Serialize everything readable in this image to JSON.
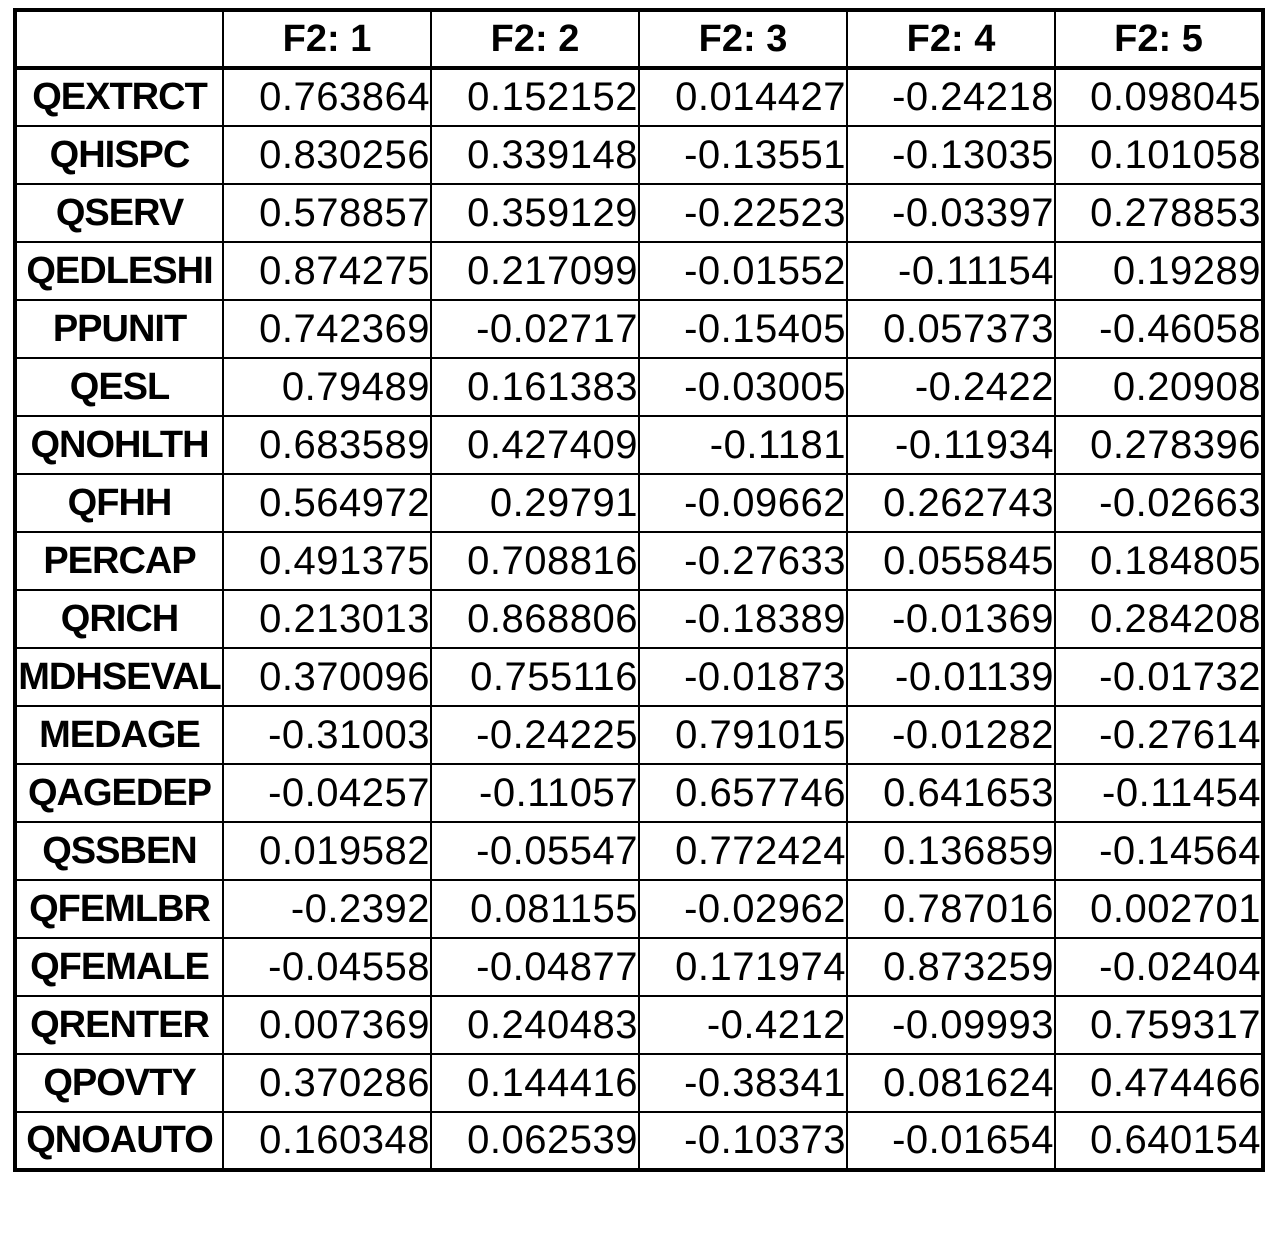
{
  "table": {
    "columns": [
      "F2: 1",
      "F2: 2",
      "F2: 3",
      "F2: 4",
      "F2: 5"
    ],
    "rows": [
      {
        "label": "QEXTRCT",
        "values": [
          "0.763864",
          "0.152152",
          "0.014427",
          "-0.24218",
          "0.098045"
        ]
      },
      {
        "label": "QHISPC",
        "values": [
          "0.830256",
          "0.339148",
          "-0.13551",
          "-0.13035",
          "0.101058"
        ]
      },
      {
        "label": "QSERV",
        "values": [
          "0.578857",
          "0.359129",
          "-0.22523",
          "-0.03397",
          "0.278853"
        ]
      },
      {
        "label": "QEDLESHI",
        "values": [
          "0.874275",
          "0.217099",
          "-0.01552",
          "-0.11154",
          "0.19289"
        ]
      },
      {
        "label": "PPUNIT",
        "values": [
          "0.742369",
          "-0.02717",
          "-0.15405",
          "0.057373",
          "-0.46058"
        ]
      },
      {
        "label": "QESL",
        "values": [
          "0.79489",
          "0.161383",
          "-0.03005",
          "-0.2422",
          "0.20908"
        ]
      },
      {
        "label": "QNOHLTH",
        "values": [
          "0.683589",
          "0.427409",
          "-0.1181",
          "-0.11934",
          "0.278396"
        ]
      },
      {
        "label": "QFHH",
        "values": [
          "0.564972",
          "0.29791",
          "-0.09662",
          "0.262743",
          "-0.02663"
        ]
      },
      {
        "label": "PERCAP",
        "values": [
          "0.491375",
          "0.708816",
          "-0.27633",
          "0.055845",
          "0.184805"
        ]
      },
      {
        "label": "QRICH",
        "values": [
          "0.213013",
          "0.868806",
          "-0.18389",
          "-0.01369",
          "0.284208"
        ]
      },
      {
        "label": "MDHSEVAL",
        "values": [
          "0.370096",
          "0.755116",
          "-0.01873",
          "-0.01139",
          "-0.01732"
        ]
      },
      {
        "label": "MEDAGE",
        "values": [
          "-0.31003",
          "-0.24225",
          "0.791015",
          "-0.01282",
          "-0.27614"
        ]
      },
      {
        "label": "QAGEDEP",
        "values": [
          "-0.04257",
          "-0.11057",
          "0.657746",
          "0.641653",
          "-0.11454"
        ]
      },
      {
        "label": "QSSBEN",
        "values": [
          "0.019582",
          "-0.05547",
          "0.772424",
          "0.136859",
          "-0.14564"
        ]
      },
      {
        "label": "QFEMLBR",
        "values": [
          "-0.2392",
          "0.081155",
          "-0.02962",
          "0.787016",
          "0.002701"
        ]
      },
      {
        "label": "QFEMALE",
        "values": [
          "-0.04558",
          "-0.04877",
          "0.171974",
          "0.873259",
          "-0.02404"
        ]
      },
      {
        "label": "QRENTER",
        "values": [
          "0.007369",
          "0.240483",
          "-0.4212",
          "-0.09993",
          "0.759317"
        ]
      },
      {
        "label": "QPOVTY",
        "values": [
          "0.370286",
          "0.144416",
          "-0.38341",
          "0.081624",
          "0.474466"
        ]
      },
      {
        "label": "QNOAUTO",
        "values": [
          "0.160348",
          "0.062539",
          "-0.10373",
          "-0.01654",
          "0.640154"
        ]
      }
    ]
  }
}
